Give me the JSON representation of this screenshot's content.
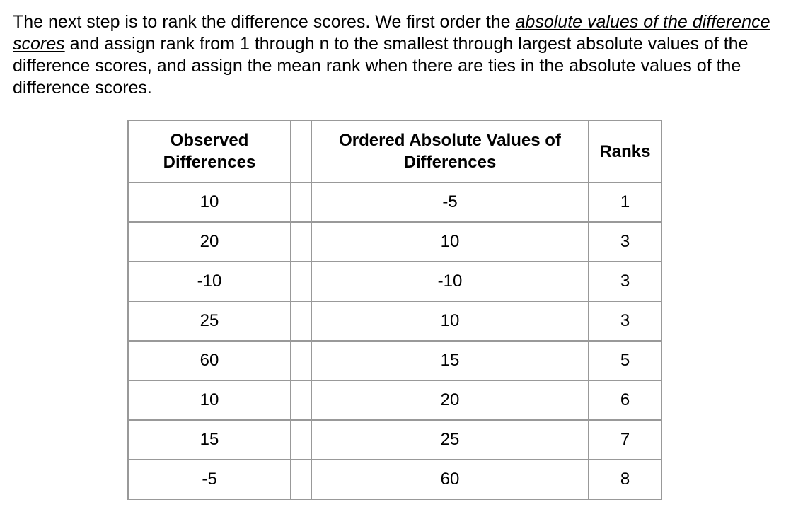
{
  "paragraph": {
    "text_before": "The next step is to rank the difference scores. We first order the ",
    "link_text": "absolute values of the difference scores",
    "text_after": " and assign rank from 1 through n to the smallest through largest absolute values of the difference scores, and assign the mean rank when there are ties in the absolute values of the difference scores."
  },
  "table": {
    "headers": {
      "observed_line1": "Observed",
      "observed_line2": "Differences",
      "blank": "",
      "ordered_line1": "Ordered Absolute Values of",
      "ordered_line2": "Differences",
      "ranks": "Ranks"
    },
    "rows": [
      {
        "observed": "10",
        "ordered": "-5",
        "rank": "1"
      },
      {
        "observed": "20",
        "ordered": "10",
        "rank": "3"
      },
      {
        "observed": "-10",
        "ordered": "-10",
        "rank": "3"
      },
      {
        "observed": "25",
        "ordered": "10",
        "rank": "3"
      },
      {
        "observed": "60",
        "ordered": "15",
        "rank": "5"
      },
      {
        "observed": "10",
        "ordered": "20",
        "rank": "6"
      },
      {
        "observed": "15",
        "ordered": "25",
        "rank": "7"
      },
      {
        "observed": "-5",
        "ordered": "60",
        "rank": "8"
      }
    ]
  }
}
